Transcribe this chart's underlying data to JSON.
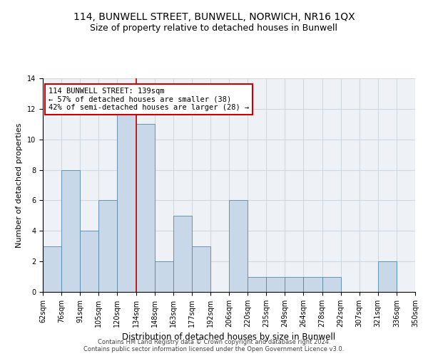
{
  "title": "114, BUNWELL STREET, BUNWELL, NORWICH, NR16 1QX",
  "subtitle": "Size of property relative to detached houses in Bunwell",
  "xlabel": "Distribution of detached houses by size in Bunwell",
  "ylabel": "Number of detached properties",
  "bin_labels": [
    "62sqm",
    "76sqm",
    "91sqm",
    "105sqm",
    "120sqm",
    "134sqm",
    "148sqm",
    "163sqm",
    "177sqm",
    "192sqm",
    "206sqm",
    "220sqm",
    "235sqm",
    "249sqm",
    "264sqm",
    "278sqm",
    "292sqm",
    "307sqm",
    "321sqm",
    "336sqm",
    "350sqm"
  ],
  "values": [
    3,
    8,
    4,
    6,
    12,
    11,
    2,
    5,
    3,
    0,
    6,
    1,
    1,
    1,
    1,
    1,
    0,
    0,
    2,
    0
  ],
  "bar_color": "#c8d8e8",
  "bar_edge_color": "#5588aa",
  "property_bin_index": 5,
  "property_line_color": "#cc0000",
  "annotation_line1": "114 BUNWELL STREET: 139sqm",
  "annotation_line2": "← 57% of detached houses are smaller (38)",
  "annotation_line3": "42% of semi-detached houses are larger (28) →",
  "annotation_box_color": "#ffffff",
  "annotation_box_edge_color": "#cc0000",
  "ylim": [
    0,
    14
  ],
  "yticks": [
    0,
    2,
    4,
    6,
    8,
    10,
    12,
    14
  ],
  "grid_color": "#d0d8e0",
  "background_color": "#eef2f7",
  "footer": "Contains HM Land Registry data © Crown copyright and database right 2024.\nContains public sector information licensed under the Open Government Licence v3.0.",
  "title_fontsize": 10,
  "subtitle_fontsize": 9,
  "xlabel_fontsize": 8.5,
  "ylabel_fontsize": 8,
  "tick_fontsize": 7,
  "annotation_fontsize": 7.5,
  "footer_fontsize": 6
}
